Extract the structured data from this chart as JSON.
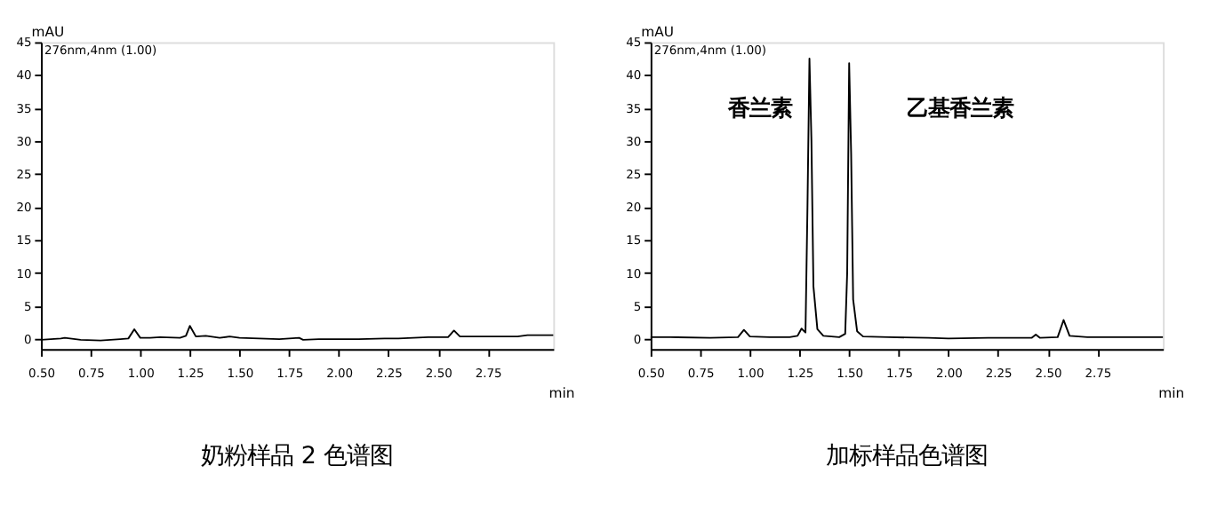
{
  "chart_data": [
    {
      "type": "line",
      "title": "奶粉样品 2 色谱图",
      "xlabel": "min",
      "ylabel": "mAU",
      "annotations": [
        "276nm,4nm (1.00)"
      ],
      "x": [
        0.5,
        0.6,
        0.62,
        0.7,
        0.8,
        0.9,
        0.94,
        0.97,
        1.0,
        1.05,
        1.1,
        1.2,
        1.23,
        1.25,
        1.28,
        1.33,
        1.4,
        1.45,
        1.5,
        1.6,
        1.7,
        1.8,
        1.82,
        1.9,
        2.0,
        2.1,
        2.23,
        2.3,
        2.45,
        2.55,
        2.58,
        2.61,
        2.75,
        2.9,
        2.95,
        3.08
      ],
      "series": [
        {
          "color": "#000000",
          "values": [
            -0.1,
            0.1,
            0.2,
            -0.1,
            -0.2,
            0.0,
            0.1,
            1.5,
            0.2,
            0.2,
            0.3,
            0.2,
            0.5,
            2.0,
            0.4,
            0.5,
            0.2,
            0.4,
            0.2,
            0.1,
            0.0,
            0.2,
            -0.1,
            0.0,
            0.0,
            0.0,
            0.1,
            0.1,
            0.3,
            0.3,
            1.3,
            0.4,
            0.4,
            0.4,
            0.6,
            0.6
          ]
        }
      ],
      "xlim": [
        0.5,
        3.08
      ],
      "ylim": [
        -1.5,
        45
      ],
      "xticks": [
        {
          "value": 0.5,
          "label": "0.50"
        },
        {
          "value": 0.75,
          "label": "0.75"
        },
        {
          "value": 1.0,
          "label": "1.00"
        },
        {
          "value": 1.25,
          "label": "1.25"
        },
        {
          "value": 1.5,
          "label": "1.50"
        },
        {
          "value": 1.75,
          "label": "1.75"
        },
        {
          "value": 2.0,
          "label": "2.00"
        },
        {
          "value": 2.25,
          "label": "2.25"
        },
        {
          "value": 2.5,
          "label": "2.50"
        },
        {
          "value": 2.75,
          "label": "2.75"
        }
      ],
      "yticks": [
        0,
        5,
        10,
        15,
        20,
        25,
        30,
        35,
        40,
        45
      ],
      "grid": false,
      "marker": "none",
      "line_style": "solid"
    },
    {
      "type": "line",
      "title": "加标样品色谱图",
      "xlabel": "min",
      "ylabel": "mAU",
      "annotations": [
        "276nm,4nm (1.00)",
        "香兰素",
        "乙基香兰素"
      ],
      "x": [
        0.5,
        0.6,
        0.8,
        0.94,
        0.97,
        1.0,
        1.1,
        1.2,
        1.24,
        1.26,
        1.28,
        1.29,
        1.3,
        1.31,
        1.32,
        1.34,
        1.37,
        1.45,
        1.48,
        1.49,
        1.5,
        1.51,
        1.52,
        1.54,
        1.57,
        1.7,
        1.9,
        2.0,
        2.2,
        2.3,
        2.42,
        2.44,
        2.46,
        2.55,
        2.58,
        2.61,
        2.7,
        2.9,
        3.08
      ],
      "series": [
        {
          "color": "#000000",
          "values": [
            0.3,
            0.3,
            0.2,
            0.3,
            1.4,
            0.4,
            0.3,
            0.3,
            0.5,
            1.6,
            1.0,
            20,
            42.5,
            30,
            8,
            1.5,
            0.5,
            0.3,
            0.8,
            10,
            41.8,
            28,
            6,
            1.2,
            0.4,
            0.3,
            0.2,
            0.1,
            0.2,
            0.2,
            0.2,
            0.7,
            0.2,
            0.3,
            2.9,
            0.5,
            0.3,
            0.3,
            0.3
          ]
        }
      ],
      "xlim": [
        0.5,
        3.08
      ],
      "ylim": [
        -1.5,
        45
      ],
      "xticks": [
        {
          "value": 0.5,
          "label": "0.50"
        },
        {
          "value": 0.75,
          "label": "0.75"
        },
        {
          "value": 1.0,
          "label": "1.00"
        },
        {
          "value": 1.25,
          "label": "1.25"
        },
        {
          "value": 1.5,
          "label": "1.50"
        },
        {
          "value": 1.75,
          "label": "1.75"
        },
        {
          "value": 2.0,
          "label": "2.00"
        },
        {
          "value": 2.25,
          "label": "2.25"
        },
        {
          "value": 2.5,
          "label": "2.50"
        },
        {
          "value": 2.75,
          "label": "2.75"
        }
      ],
      "yticks": [
        0,
        5,
        10,
        15,
        20,
        25,
        30,
        35,
        40,
        45
      ],
      "grid": false,
      "marker": "none",
      "line_style": "solid"
    }
  ]
}
